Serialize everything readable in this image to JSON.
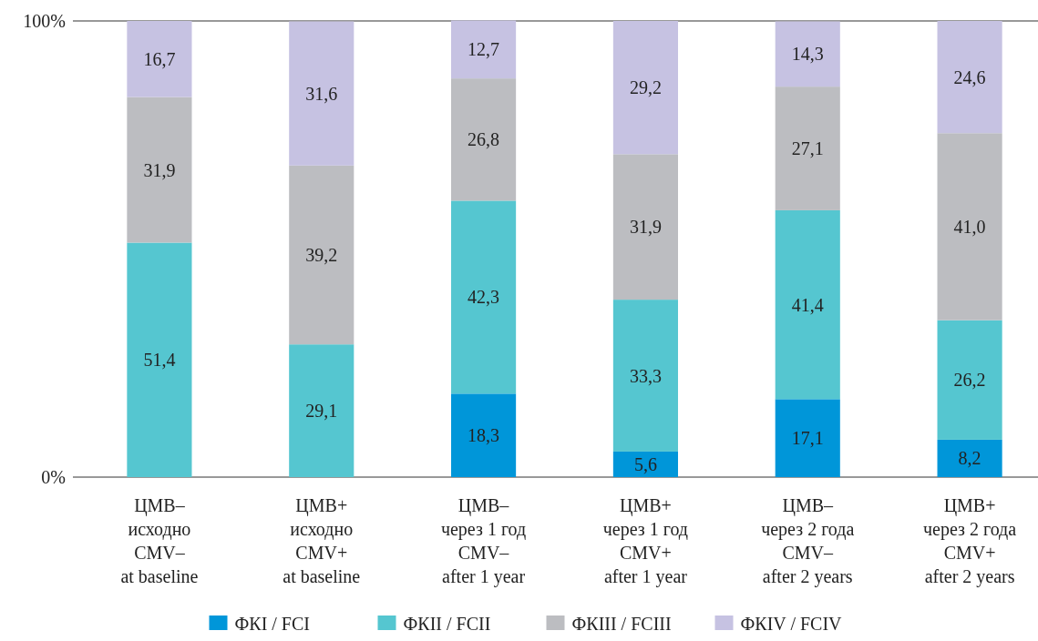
{
  "chart_data": {
    "type": "bar",
    "stacked": true,
    "categories": [
      "ЦМВ–\nисходно\nCMV–\nat baseline",
      "ЦМВ+\nисходно\nCMV+\nat baseline",
      "ЦМВ–\nчерез 1 год\nCMV–\nafter 1 year",
      "ЦМВ+\nчерез 1 год\nCMV+\nafter 1 year",
      "ЦМВ–\nчерез 2 года\nCMV–\nafter 2 years",
      "ЦМВ+\nчерез 2 года\nCMV+\nafter 2 years"
    ],
    "ylim": [
      0,
      100
    ],
    "yticks": [
      {
        "value": 0,
        "label": "0%"
      },
      {
        "value": 100,
        "label": "100%"
      }
    ],
    "legend": "bottom",
    "series": [
      {
        "name": "ФКI / FCI",
        "color": "#0096d9",
        "values": [
          null,
          null,
          18.3,
          5.6,
          17.1,
          8.2
        ],
        "value_labels": [
          null,
          null,
          "18,3",
          "5,6",
          "17,1",
          "8,2"
        ]
      },
      {
        "name": "ФКII / FCII",
        "color": "#55c6d0",
        "values": [
          51.4,
          29.1,
          42.3,
          33.3,
          41.4,
          26.2
        ],
        "value_labels": [
          "51,4",
          "29,1",
          "42,3",
          "33,3",
          "41,4",
          "26,2"
        ]
      },
      {
        "name": "ФКIII / FCIII",
        "color": "#bcbdc1",
        "values": [
          31.9,
          39.2,
          26.8,
          31.9,
          27.1,
          41.0
        ],
        "value_labels": [
          "31,9",
          "39,2",
          "26,8",
          "31,9",
          "27,1",
          "41,0"
        ]
      },
      {
        "name": "ФКIV / FCIV",
        "color": "#c6c2e2",
        "values": [
          16.7,
          31.6,
          12.7,
          29.2,
          14.3,
          24.6
        ],
        "value_labels": [
          "16,7",
          "31,6",
          "12,7",
          "29,2",
          "14,3",
          "24,6"
        ]
      }
    ]
  }
}
